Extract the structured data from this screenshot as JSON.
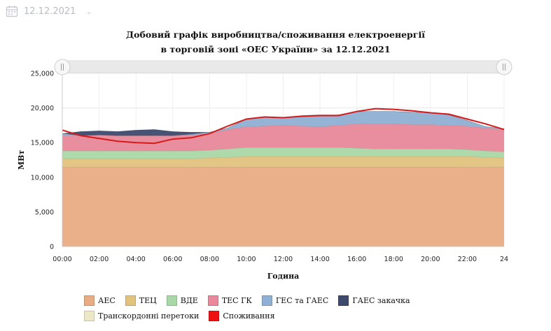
{
  "header": {
    "date": "12.12.2021"
  },
  "chart_data": {
    "type": "area",
    "title": [
      "Добовий графік виробництва/споживання електроенергії",
      "в торговій зоні «ОЕС України» за 12.12.2021"
    ],
    "xlabel": "Година",
    "ylabel": "МВт",
    "ylim": [
      0,
      25000
    ],
    "yticks": [
      0,
      5000,
      10000,
      15000,
      20000,
      25000
    ],
    "ytick_labels": [
      "0",
      "5,000",
      "10,000",
      "15,000",
      "20,000",
      "25,000"
    ],
    "xlim": [
      0,
      24
    ],
    "xtick_labels": [
      "00:00",
      "02:00",
      "04:00",
      "06:00",
      "08:00",
      "10:00",
      "12:00",
      "14:00",
      "16:00",
      "18:00",
      "20:00",
      "22:00",
      "24"
    ],
    "x": [
      0,
      1,
      2,
      3,
      4,
      5,
      6,
      7,
      8,
      9,
      10,
      11,
      12,
      13,
      14,
      15,
      16,
      17,
      18,
      19,
      20,
      21,
      22,
      23,
      24
    ],
    "stacked": true,
    "legend_position": "bottom",
    "grid": true,
    "series": [
      {
        "name": "АЕС",
        "color": "#e8ac84",
        "values": [
          11500,
          11500,
          11500,
          11500,
          11500,
          11500,
          11500,
          11500,
          11500,
          11500,
          11500,
          11500,
          11500,
          11500,
          11500,
          11500,
          11500,
          11500,
          11500,
          11500,
          11500,
          11500,
          11500,
          11500,
          11500
        ]
      },
      {
        "name": "ТЕЦ",
        "color": "#e2c37e",
        "values": [
          1200,
          1200,
          1200,
          1200,
          1200,
          1200,
          1200,
          1200,
          1300,
          1400,
          1500,
          1500,
          1500,
          1500,
          1500,
          1500,
          1500,
          1500,
          1500,
          1500,
          1500,
          1500,
          1500,
          1400,
          1300
        ]
      },
      {
        "name": "ВДЕ",
        "color": "#a9d7a7",
        "values": [
          1100,
          1100,
          1100,
          1100,
          1100,
          1100,
          1100,
          1100,
          1100,
          1200,
          1300,
          1300,
          1300,
          1300,
          1300,
          1300,
          1200,
          1100,
          1100,
          1100,
          1100,
          1100,
          1000,
          900,
          900
        ]
      },
      {
        "name": "ТЕС ГК",
        "color": "#e8889a",
        "values": [
          2200,
          2200,
          2300,
          2200,
          2200,
          2200,
          2200,
          2300,
          2400,
          2800,
          3000,
          3100,
          3200,
          3100,
          3000,
          3200,
          3500,
          3600,
          3600,
          3500,
          3500,
          3400,
          3400,
          3300,
          3200
        ]
      },
      {
        "name": "ГЕС та ГАЕС",
        "color": "#8fb0d3",
        "values": [
          300,
          0,
          0,
          0,
          0,
          0,
          0,
          100,
          200,
          200,
          1100,
          1300,
          1100,
          1500,
          1700,
          1500,
          1800,
          1800,
          1800,
          1800,
          1700,
          1500,
          800,
          200,
          100
        ]
      },
      {
        "name": "ГАЕС закачка",
        "color": "#3d4a6e",
        "values": [
          0,
          600,
          600,
          600,
          800,
          900,
          600,
          300,
          0,
          0,
          0,
          0,
          0,
          0,
          0,
          0,
          0,
          0,
          0,
          0,
          0,
          0,
          0,
          0,
          0
        ]
      },
      {
        "name": "Транскордонні перетоки",
        "color": "#ece7c7",
        "values": [
          0,
          0,
          0,
          0,
          0,
          0,
          0,
          0,
          0,
          0,
          0,
          0,
          0,
          0,
          0,
          0,
          0,
          0,
          0,
          0,
          0,
          0,
          0,
          0,
          0
        ]
      }
    ],
    "consumption": {
      "name": "Споживання",
      "color": "#d61a1a",
      "values": [
        16800,
        16000,
        15600,
        15200,
        15000,
        14900,
        15500,
        15700,
        16300,
        17400,
        18400,
        18700,
        18600,
        18800,
        18900,
        18900,
        19500,
        19900,
        19800,
        19600,
        19300,
        19100,
        18400,
        17700,
        16900
      ]
    }
  }
}
